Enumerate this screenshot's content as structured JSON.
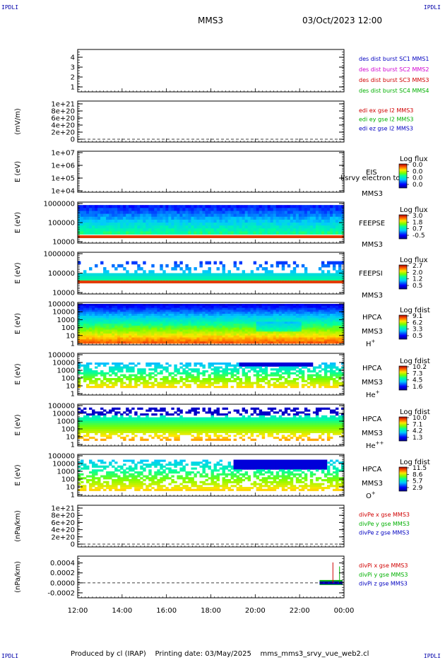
{
  "corners": {
    "tl": "IPDLI",
    "tr": "IPDLI",
    "bl": "IPDLI",
    "br": "IPDLI"
  },
  "header": {
    "mission": "MMS3",
    "datetime": "03/Oct/2023 12:00"
  },
  "footer": {
    "text": "Produced by cl (IRAP)    Printing date: 03/May/2025    mms_mms3_srvy_vue_web2.cl"
  },
  "chart_data": [
    {
      "type": "line",
      "ylabel": "",
      "ylim": [
        0.5,
        4.5
      ],
      "yticks": [
        "1",
        "2",
        "3",
        "4"
      ],
      "ytick_values": [
        1,
        2,
        3,
        4
      ],
      "legend": [
        {
          "label": "des dist burst SC1 MMS1",
          "color": "#0000c0"
        },
        {
          "label": "des dist burst SC2 MMS2",
          "color": "#d000d0"
        },
        {
          "label": "des dist burst SC3 MMS3",
          "color": "#d00000"
        },
        {
          "label": "des dist burst SC4 MMS4",
          "color": "#00b000"
        }
      ]
    },
    {
      "type": "line",
      "ylabel": "(mV/m)",
      "yticks": [
        "0",
        "2e+20",
        "4e+20",
        "6e+20",
        "8e+20",
        "1e+21"
      ],
      "ytick_values": [
        0,
        2e+20,
        4e+20,
        6e+20,
        8e+20,
        1e+21
      ],
      "dashed_zero": true,
      "legend": [
        {
          "label": "edi ex gse l2 MMS3",
          "color": "#d00000"
        },
        {
          "label": "edi ey gse l2 MMS3",
          "color": "#00b000"
        },
        {
          "label": "edi ez gse l2 MMS3",
          "color": "#0000c0"
        }
      ]
    },
    {
      "type": "heatmap",
      "ylabel": "E (eV)",
      "yscale": "log",
      "yticks": [
        "1e+04",
        "1e+05",
        "1e+06",
        "1e+07"
      ],
      "ytick_values": [
        10000.0,
        100000.0,
        1000000.0,
        10000000.0
      ],
      "side_label": [
        "EIS",
        "MMS3"
      ],
      "overlay_text": "l/srvy electron to",
      "colorbar": {
        "title": "Log flux",
        "ticks": [
          "0.0",
          "0.0",
          "0.0",
          "0.0"
        ]
      }
    },
    {
      "type": "heatmap",
      "ylabel": "E (eV)",
      "yscale": "log",
      "yticks": [
        "10000",
        "100000",
        "1000000"
      ],
      "ytick_values": [
        10000.0,
        100000.0,
        1000000.0
      ],
      "side_label": [
        "FEEPSE",
        "MMS3"
      ],
      "colorbar": {
        "title": "Log flux",
        "ticks": [
          "3.0",
          "1.8",
          "0.7",
          "-0.5"
        ]
      }
    },
    {
      "type": "heatmap",
      "ylabel": "E (eV)",
      "yscale": "log",
      "yticks": [
        "10000",
        "100000",
        "1000000"
      ],
      "ytick_values": [
        10000.0,
        100000.0,
        1000000.0
      ],
      "side_label": [
        "FEEPSI",
        "MMS3"
      ],
      "colorbar": {
        "title": "Log flux",
        "ticks": [
          "2.7",
          "2.0",
          "1.2",
          "0.5"
        ]
      }
    },
    {
      "type": "heatmap",
      "ylabel": "E (eV)",
      "yscale": "log",
      "yticks": [
        "1",
        "10",
        "100",
        "1000",
        "10000",
        "100000"
      ],
      "ytick_values": [
        1,
        10,
        100,
        1000,
        10000,
        100000
      ],
      "side_label": [
        "HPCA",
        "MMS3"
      ],
      "species": {
        "base": "H",
        "sup": "+"
      },
      "colorbar": {
        "title": "Log fdist",
        "ticks": [
          "9.1",
          "6.2",
          "3.3",
          "0.5"
        ]
      }
    },
    {
      "type": "heatmap",
      "ylabel": "E (eV)",
      "yscale": "log",
      "yticks": [
        "1",
        "10",
        "100",
        "1000",
        "10000",
        "100000"
      ],
      "ytick_values": [
        1,
        10,
        100,
        1000,
        10000,
        100000
      ],
      "side_label": [
        "HPCA",
        "MMS3"
      ],
      "species": {
        "base": "He",
        "sup": "+"
      },
      "colorbar": {
        "title": "Log fdist",
        "ticks": [
          "10.2",
          "7.3",
          "4.5",
          "1.6"
        ]
      }
    },
    {
      "type": "heatmap",
      "ylabel": "E (eV)",
      "yscale": "log",
      "yticks": [
        "1",
        "10",
        "100",
        "1000",
        "10000",
        "100000"
      ],
      "ytick_values": [
        1,
        10,
        100,
        1000,
        10000,
        100000
      ],
      "side_label": [
        "HPCA",
        "MMS3"
      ],
      "species": {
        "base": "He",
        "sup": "++"
      },
      "colorbar": {
        "title": "Log fdist",
        "ticks": [
          "10.0",
          "7.1",
          "4.2",
          "1.3"
        ]
      }
    },
    {
      "type": "heatmap",
      "ylabel": "E (eV)",
      "yscale": "log",
      "yticks": [
        "1",
        "10",
        "100",
        "1000",
        "10000",
        "100000"
      ],
      "ytick_values": [
        1,
        10,
        100,
        1000,
        10000,
        100000
      ],
      "side_label": [
        "HPCA",
        "MMS3"
      ],
      "species": {
        "base": "O",
        "sup": "+"
      },
      "colorbar": {
        "title": "Log fdist",
        "ticks": [
          "11.5",
          "8.6",
          "5.7",
          "2.9"
        ]
      }
    },
    {
      "type": "line",
      "ylabel": "(nPa/km)",
      "yticks": [
        "0",
        "2e+20",
        "4e+20",
        "6e+20",
        "8e+20",
        "1e+21"
      ],
      "ytick_values": [
        0,
        2e+20,
        4e+20,
        6e+20,
        8e+20,
        1e+21
      ],
      "dashed_zero": true,
      "legend": [
        {
          "label": "divPe x gse MMS3",
          "color": "#d00000"
        },
        {
          "label": "divPe y gse MMS3",
          "color": "#00b000"
        },
        {
          "label": "divPe z gse MMS3",
          "color": "#0000c0"
        }
      ]
    },
    {
      "type": "line",
      "ylabel": "(nPa/km)",
      "ylim": [
        -0.0003,
        0.00048
      ],
      "yticks": [
        "-0.0002",
        "0.0000",
        "0.0002",
        "0.0004"
      ],
      "ytick_values": [
        -0.0002,
        0,
        0.0002,
        0.0004
      ],
      "dashed_zero": true,
      "data_start_hour": 10.9,
      "legend": [
        {
          "label": "divPi x gse MMS3",
          "color": "#d00000"
        },
        {
          "label": "divPi y gse MMS3",
          "color": "#00b000"
        },
        {
          "label": "divPi z gse MMS3",
          "color": "#0000c0"
        }
      ]
    }
  ],
  "time_axis": {
    "labels": [
      "12:00",
      "14:00",
      "16:00",
      "18:00",
      "20:00",
      "22:00",
      "00:00"
    ],
    "hours": [
      0,
      2,
      4,
      6,
      8,
      10,
      12
    ]
  }
}
